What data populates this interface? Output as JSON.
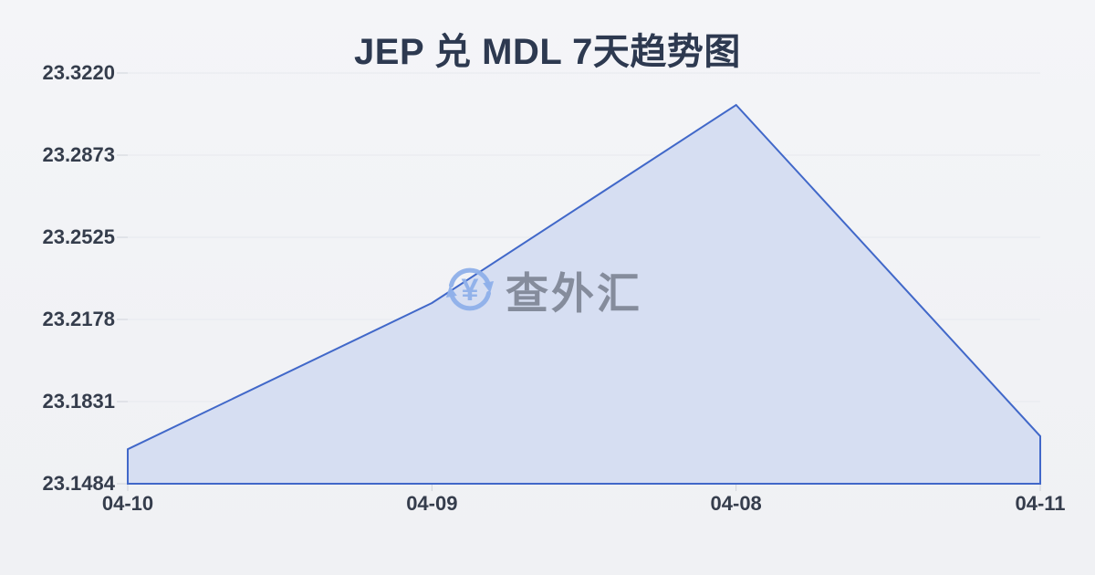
{
  "page": {
    "background": "#f2f3f6"
  },
  "watermark": {
    "text": "查外汇",
    "icon": "currency-exchange-refresh-icon",
    "icon_color": "#8fb0ea",
    "text_color": "#7f8695"
  },
  "chart_data": {
    "type": "area",
    "title": "JEP 兑 MDL 7天趋势图",
    "categories": [
      "04-10",
      "04-09",
      "04-08",
      "04-11"
    ],
    "values": [
      23.163,
      23.2248,
      23.3085,
      23.1685
    ],
    "yticks": [
      "23.3220",
      "23.2873",
      "23.2525",
      "23.2178",
      "23.1831",
      "23.1484"
    ],
    "ylim": [
      23.1484,
      23.322
    ],
    "xlabel": "",
    "ylabel": "",
    "grid": true,
    "legend": false,
    "line_color": "#4168c9",
    "fill_color": "#d6def2",
    "grid_color": "#e7e9ee",
    "tick_color": "#cfd3da",
    "label_color": "#353d4c"
  }
}
